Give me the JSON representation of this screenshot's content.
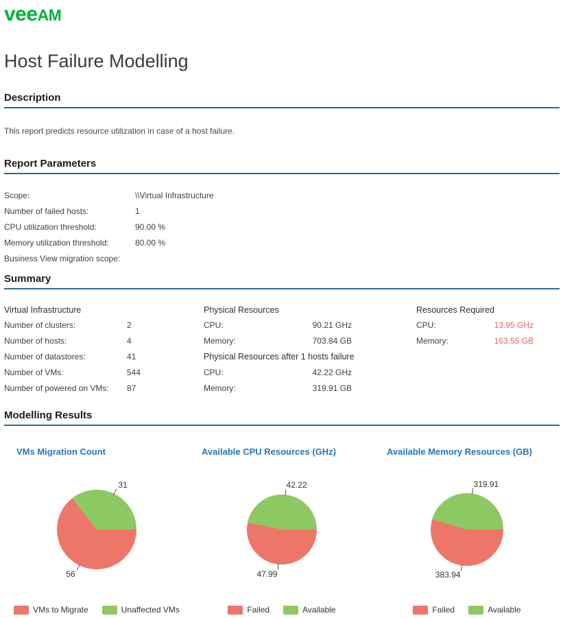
{
  "header": {
    "logo_vee": "vee",
    "logo_am": "AM",
    "brand_color": "#00B336"
  },
  "page_title": "Host Failure Modelling",
  "description": {
    "heading": "Description",
    "text": "This report predicts resource utilization in case of a host failure."
  },
  "report_parameters": {
    "heading": "Report Parameters",
    "rows": [
      {
        "label": "Scope:",
        "value": "\\\\Virtual Infrastructure"
      },
      {
        "label": "Number of failed hosts:",
        "value": "1"
      },
      {
        "label": "CPU utilization threshold:",
        "value": "90.00 %"
      },
      {
        "label": "Memory utilization threshold:",
        "value": "80.00 %"
      },
      {
        "label": "Business View migration scope:",
        "value": ""
      }
    ]
  },
  "summary": {
    "heading": "Summary",
    "virtual_infrastructure": {
      "header": "Virtual Infrastructure",
      "rows": [
        {
          "label": "Number of clusters:",
          "value": "2"
        },
        {
          "label": "Number of hosts:",
          "value": "4"
        },
        {
          "label": "Number of datastores:",
          "value": "41"
        },
        {
          "label": "Number of VMs:",
          "value": "544"
        },
        {
          "label": "Number of powered on VMs:",
          "value": "87"
        }
      ]
    },
    "physical_resources": {
      "header": "Physical Resources",
      "rows": [
        {
          "label": "CPU:",
          "value": "90.21 GHz"
        },
        {
          "label": "Memory:",
          "value": "703.84 GB"
        }
      ],
      "subheader": "Physical Resources after 1 hosts failure",
      "after_rows": [
        {
          "label": "CPU:",
          "value": "42.22 GHz"
        },
        {
          "label": "Memory:",
          "value": "319.91 GB"
        }
      ]
    },
    "resources_required": {
      "header": "Resources Required",
      "value_color": "#E4635C",
      "rows": [
        {
          "label": "CPU:",
          "value": "13.95 GHz"
        },
        {
          "label": "Memory:",
          "value": "163.55 GB"
        }
      ]
    }
  },
  "modelling_results": {
    "heading": "Modelling Results"
  },
  "chart_data": [
    {
      "type": "pie",
      "title": "VMs Migration Count",
      "start": "east",
      "direction": "clockwise",
      "legend_position": "bottom",
      "slices": [
        {
          "label": "VMs to Migrate",
          "value": 56,
          "color": "#ED7669"
        },
        {
          "label": "Unaffected VMs",
          "value": 31,
          "color": "#8DC963"
        }
      ]
    },
    {
      "type": "pie",
      "title": "Available CPU Resources (GHz)",
      "start": "east",
      "direction": "clockwise",
      "legend_position": "bottom",
      "slices": [
        {
          "label": "Failed",
          "value": 47.99,
          "color": "#ED7669"
        },
        {
          "label": "Available",
          "value": 42.22,
          "color": "#8DC963"
        }
      ]
    },
    {
      "type": "pie",
      "title": "Available Memory Resources (GB)",
      "start": "east",
      "direction": "clockwise",
      "legend_position": "bottom",
      "slices": [
        {
          "label": "Failed",
          "value": 383.94,
          "color": "#ED7669"
        },
        {
          "label": "Available",
          "value": 319.91,
          "color": "#8DC963"
        }
      ]
    }
  ]
}
